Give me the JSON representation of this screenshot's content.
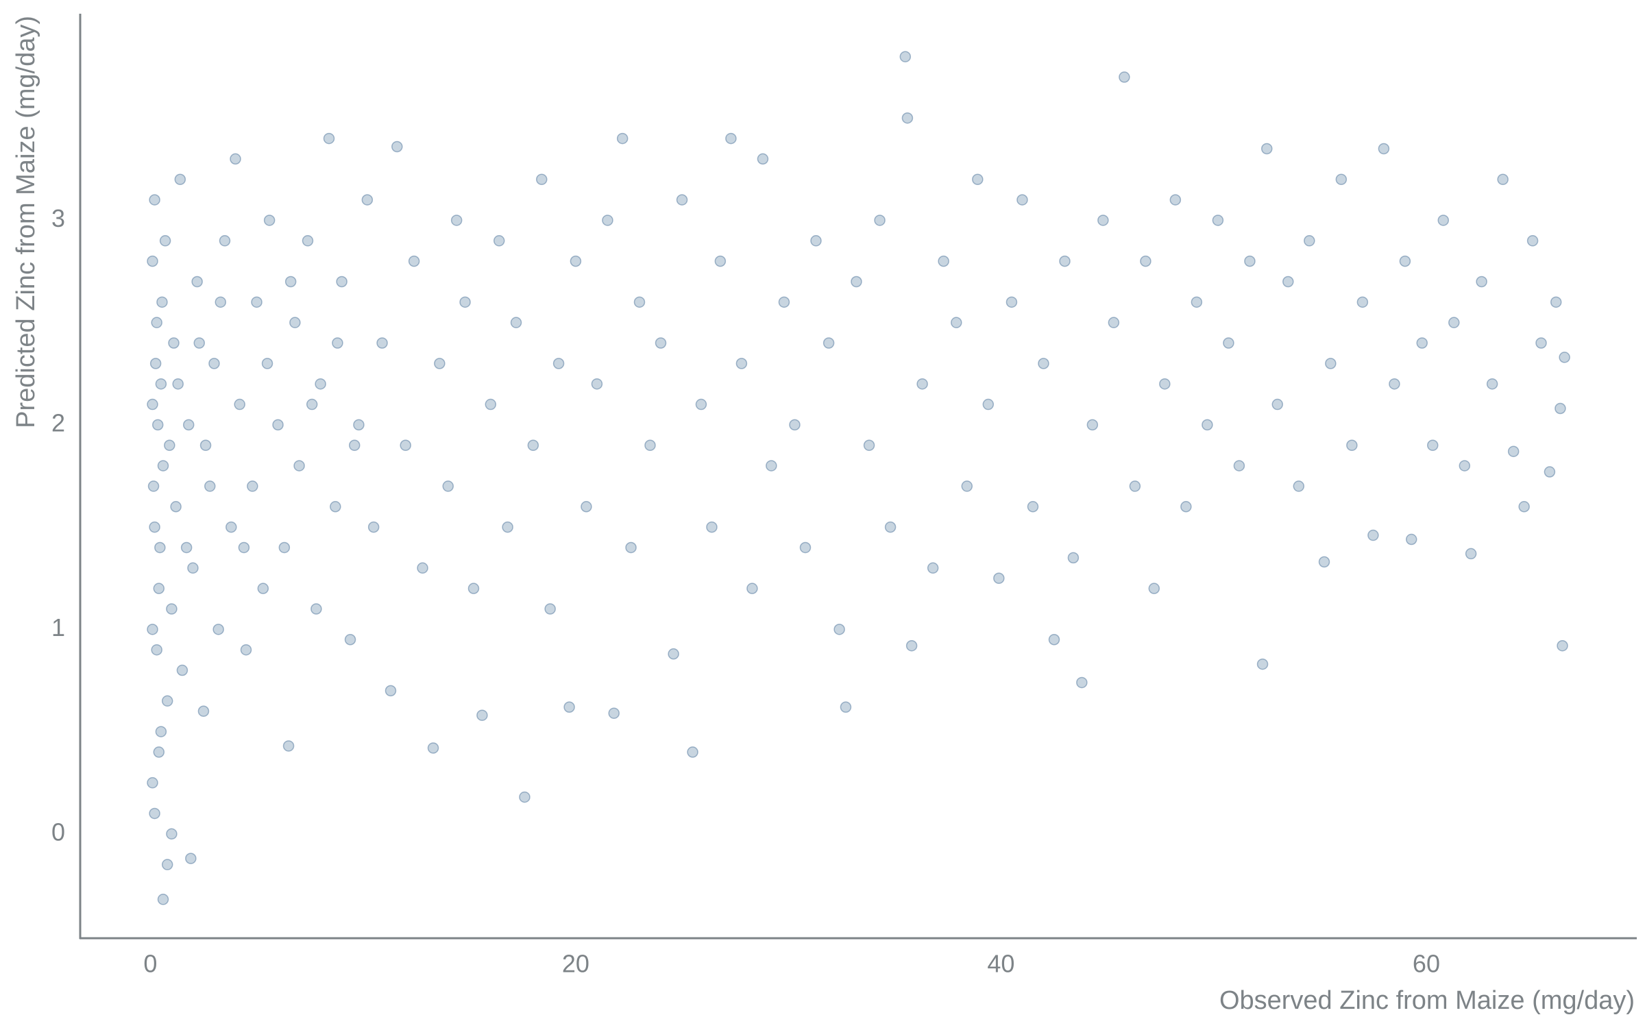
{
  "chart_data": {
    "type": "scatter",
    "xlabel": "Observed Zinc from Maize (mg/day)",
    "ylabel": "Predicted Zinc from Maize (mg/day)",
    "color": "#3b6790",
    "xlim": [
      -3.3,
      69.8
    ],
    "xticks": [
      0,
      20,
      40,
      60
    ],
    "ylim": [
      -0.51,
      4.0
    ],
    "yticks": [
      0,
      1,
      2,
      3
    ],
    "grid": false,
    "x": [
      0.1,
      0.2,
      0.1,
      0.3,
      0.2,
      0.5,
      0.4,
      0.3,
      0.6,
      0.1,
      0.2,
      0.8,
      0.5,
      0.7,
      1.0,
      1.2,
      1.1,
      1.5,
      1.4,
      1.8,
      2.0,
      2.2,
      2.5,
      2.6,
      3.0,
      3.2,
      3.5,
      3.8,
      4.0,
      4.2,
      4.5,
      4.8,
      5.0,
      5.3,
      5.6,
      6.0,
      6.3,
      6.5,
      6.8,
      7.0,
      7.4,
      7.8,
      8.0,
      8.4,
      8.7,
      9.0,
      9.4,
      9.8,
      10.2,
      10.5,
      10.9,
      11.3,
      11.6,
      12.0,
      12.4,
      12.8,
      13.3,
      13.6,
      14.0,
      14.4,
      14.8,
      15.2,
      15.6,
      16.0,
      16.4,
      16.8,
      17.2,
      17.6,
      18.0,
      18.4,
      18.8,
      19.2,
      19.7,
      20.0,
      20.5,
      21.0,
      21.5,
      21.8,
      22.2,
      22.6,
      23.0,
      23.5,
      24.0,
      24.6,
      25.0,
      25.5,
      25.9,
      26.4,
      26.8,
      27.3,
      27.8,
      28.3,
      28.8,
      29.2,
      29.8,
      30.3,
      30.8,
      31.3,
      31.9,
      32.4,
      32.7,
      33.2,
      33.8,
      34.3,
      34.8,
      35.5,
      35.6,
      35.8,
      36.3,
      36.8,
      37.3,
      37.9,
      38.4,
      38.9,
      39.4,
      39.9,
      40.5,
      41.0,
      41.5,
      42.0,
      42.5,
      43.0,
      43.4,
      43.8,
      44.3,
      44.8,
      45.3,
      45.8,
      46.3,
      46.8,
      47.2,
      47.7,
      48.2,
      48.7,
      49.2,
      49.7,
      50.2,
      50.7,
      51.2,
      51.7,
      52.3,
      52.5,
      53.0,
      53.5,
      54.0,
      54.5,
      55.2,
      55.5,
      56.0,
      56.5,
      57.0,
      57.5,
      58.0,
      58.5,
      59.0,
      59.3,
      59.8,
      60.3,
      60.8,
      61.3,
      61.8,
      62.1,
      62.6,
      63.1,
      63.6,
      64.1,
      64.6,
      65.0,
      65.4,
      65.8,
      66.1,
      66.4,
      66.5,
      66.3,
      0.6,
      0.8,
      1.9,
      1.0,
      0.4,
      0.1,
      0.15,
      0.25,
      0.35,
      0.45,
      0.55,
      0.9,
      1.3,
      1.7,
      2.3,
      2.8,
      3.3,
      4.4,
      5.5,
      6.6,
      7.6,
      8.8,
      9.6
    ],
    "values": [
      2.1,
      1.5,
      2.8,
      0.9,
      3.1,
      0.5,
      1.2,
      2.5,
      1.8,
      0.25,
      0.1,
      0.65,
      2.2,
      2.9,
      1.1,
      1.6,
      2.4,
      0.8,
      3.2,
      2.0,
      1.3,
      2.7,
      0.6,
      1.9,
      2.3,
      1.0,
      2.9,
      1.5,
      3.3,
      2.1,
      0.9,
      1.7,
      2.6,
      1.2,
      3.0,
      2.0,
      1.4,
      0.43,
      2.5,
      1.8,
      2.9,
      1.1,
      2.2,
      3.4,
      1.6,
      2.7,
      0.95,
      2.0,
      3.1,
      1.5,
      2.4,
      0.7,
      3.36,
      1.9,
      2.8,
      1.3,
      0.42,
      2.3,
      1.7,
      3.0,
      2.6,
      1.2,
      0.58,
      2.1,
      2.9,
      1.5,
      2.5,
      0.18,
      1.9,
      3.2,
      1.1,
      2.3,
      0.62,
      2.8,
      1.6,
      2.2,
      3.0,
      0.59,
      3.4,
      1.4,
      2.6,
      1.9,
      2.4,
      0.88,
      3.1,
      0.4,
      2.1,
      1.5,
      2.8,
      3.4,
      2.3,
      1.2,
      3.3,
      1.8,
      2.6,
      2.0,
      1.4,
      2.9,
      2.4,
      1.0,
      0.62,
      2.7,
      1.9,
      3.0,
      1.5,
      3.8,
      3.5,
      0.92,
      2.2,
      1.3,
      2.8,
      2.5,
      1.7,
      3.2,
      2.1,
      1.25,
      2.6,
      3.1,
      1.6,
      2.3,
      0.95,
      2.8,
      1.35,
      0.74,
      2.0,
      3.0,
      2.5,
      3.7,
      1.7,
      2.8,
      1.2,
      2.2,
      3.1,
      1.6,
      2.6,
      2.0,
      3.0,
      2.4,
      1.8,
      2.8,
      0.83,
      3.35,
      2.1,
      2.7,
      1.7,
      2.9,
      1.33,
      2.3,
      3.2,
      1.9,
      2.6,
      1.46,
      3.35,
      2.2,
      2.8,
      1.44,
      2.4,
      1.9,
      3.0,
      2.5,
      1.8,
      1.37,
      2.7,
      2.2,
      3.2,
      1.87,
      1.6,
      2.9,
      2.4,
      1.77,
      2.6,
      0.92,
      2.33,
      2.08,
      -0.32,
      -0.15,
      -0.12,
      0.0,
      0.4,
      1.0,
      1.7,
      2.3,
      2.0,
      1.4,
      2.6,
      1.9,
      2.2,
      1.4,
      2.4,
      1.7,
      2.6,
      1.4,
      2.3,
      2.7,
      2.1,
      2.4,
      1.9
    ]
  }
}
